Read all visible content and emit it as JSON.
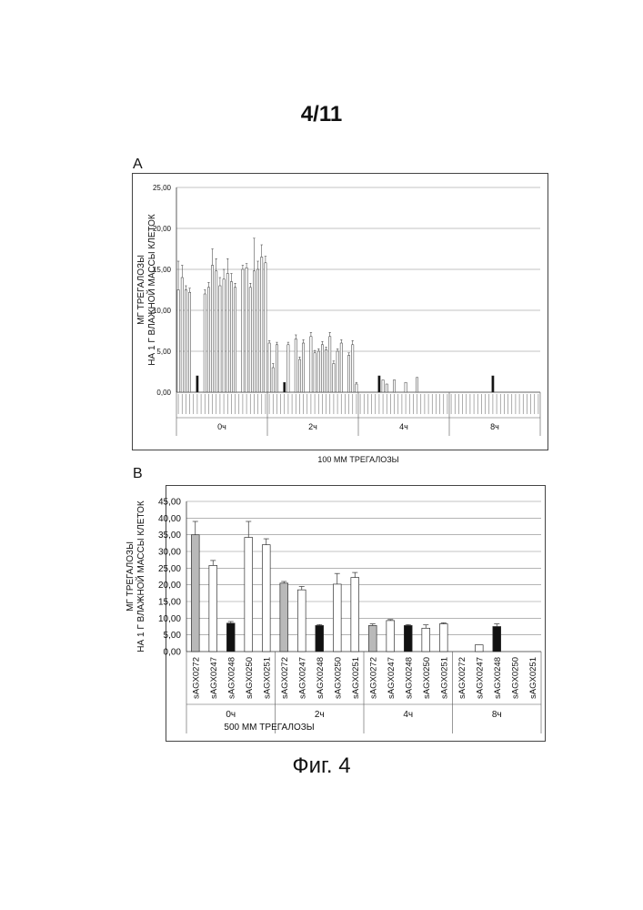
{
  "page": {
    "number": "4/11",
    "caption": "Фиг. 4"
  },
  "colors": {
    "gray": "#b9b9b9",
    "white": "#ffffff",
    "black": "#111111",
    "grid": "#888888"
  },
  "chart_data": [
    {
      "panel": "A",
      "type": "bar",
      "title": "",
      "xlabel": "100 ММ ТРЕГАЛОЗЫ",
      "ylabel_lines": [
        "МГ ТРЕГАЛОЗЫ",
        "НА 1 Г ВЛАЖНОЙ МАССЫ КЛЕТОК"
      ],
      "ylim": [
        0,
        25
      ],
      "ytick_labels": [
        "0,00",
        "5,00",
        "10,00",
        "15,00",
        "20,00",
        "25,00"
      ],
      "grid": true,
      "groups": [
        {
          "label": "0ч",
          "values": [
            12.5,
            14.0,
            12.5,
            12.2,
            0,
            2.0,
            0,
            12.0,
            12.8,
            15.5,
            14.8,
            13.0,
            13.8,
            14.5,
            13.5,
            12.8,
            0,
            15.0,
            15.2,
            12.8,
            14.8,
            15.0,
            16.5,
            15.8
          ],
          "errors": [
            3.5,
            1.5,
            0.5,
            0.5,
            0,
            0,
            0,
            0.5,
            0.6,
            2.0,
            1.5,
            1.0,
            1.2,
            1.8,
            1.0,
            0.5,
            0,
            0.5,
            0.5,
            0.5,
            4.0,
            1.0,
            1.5,
            0.8
          ],
          "styles": [
            "w",
            "w",
            "w",
            "w",
            "w",
            "b",
            "w",
            "w",
            "w",
            "w",
            "w",
            "w",
            "w",
            "w",
            "w",
            "w",
            "w",
            "w",
            "w",
            "w",
            "w",
            "w",
            "w",
            "w"
          ]
        },
        {
          "label": "2ч",
          "values": [
            6.0,
            3.0,
            5.8,
            0,
            1.2,
            5.8,
            0,
            6.5,
            4.0,
            6.0,
            0,
            6.8,
            4.8,
            5.0,
            5.8,
            5.2,
            6.8,
            3.5,
            5.0,
            6.0,
            0,
            4.5,
            5.8,
            1.0
          ],
          "errors": [
            0.3,
            0.5,
            0.3,
            0,
            0,
            0.3,
            0,
            0.5,
            0.3,
            0.4,
            0,
            0.5,
            0.3,
            0.3,
            0.4,
            0.3,
            0.5,
            0.3,
            0.3,
            0.4,
            0,
            0.3,
            0.5,
            0.2
          ],
          "styles": [
            "w",
            "w",
            "w",
            "w",
            "b",
            "w",
            "w",
            "w",
            "w",
            "w",
            "w",
            "w",
            "w",
            "w",
            "w",
            "w",
            "w",
            "w",
            "w",
            "w",
            "w",
            "w",
            "w",
            "w"
          ]
        },
        {
          "label": "4ч",
          "values": [
            0,
            0,
            0,
            0,
            0,
            2.0,
            1.5,
            1.0,
            0,
            1.5,
            0,
            0,
            1.2,
            0,
            0,
            1.8,
            0,
            0,
            0,
            0,
            0,
            0,
            0,
            0
          ],
          "errors": [
            0,
            0,
            0,
            0,
            0,
            0,
            0,
            0,
            0,
            0,
            0,
            0,
            0,
            0,
            0,
            0,
            0,
            0,
            0,
            0,
            0,
            0,
            0,
            0
          ],
          "styles": [
            "w",
            "w",
            "w",
            "w",
            "w",
            "b",
            "w",
            "w",
            "w",
            "w",
            "w",
            "w",
            "w",
            "w",
            "w",
            "w",
            "w",
            "w",
            "w",
            "w",
            "w",
            "w",
            "w",
            "w"
          ]
        },
        {
          "label": "8ч",
          "values": [
            0,
            0,
            0,
            0,
            0,
            0,
            0,
            0,
            0,
            0,
            0,
            2.0,
            0,
            0,
            0,
            0,
            0,
            0,
            0,
            0,
            0,
            0,
            0,
            0
          ],
          "errors": [
            0,
            0,
            0,
            0,
            0,
            0,
            0,
            0,
            0,
            0,
            0,
            0,
            0,
            0,
            0,
            0,
            0,
            0,
            0,
            0,
            0,
            0,
            0,
            0
          ],
          "styles": [
            "w",
            "w",
            "w",
            "w",
            "w",
            "w",
            "w",
            "w",
            "w",
            "w",
            "w",
            "b",
            "w",
            "w",
            "w",
            "w",
            "w",
            "w",
            "w",
            "w",
            "w",
            "w",
            "w",
            "w"
          ]
        }
      ]
    },
    {
      "panel": "B",
      "type": "bar",
      "title": "",
      "xlabel": "500 ММ ТРЕГАЛОЗЫ",
      "ylabel_lines": [
        "МГ ТРЕГАЛОЗЫ",
        "НА 1 Г ВЛАЖНОЙ МАССЫ КЛЕТОК"
      ],
      "ylim": [
        0,
        45
      ],
      "ytick_labels": [
        "0,00",
        "5,00",
        "10,00",
        "15,00",
        "20,00",
        "25,00",
        "30,00",
        "35,00",
        "40,00",
        "45,00"
      ],
      "grid": true,
      "categories": [
        "sAGX0272",
        "sAGX0247",
        "sAGX0248",
        "sAGX0250",
        "sAGX0251"
      ],
      "category_styles": [
        "g",
        "w",
        "b",
        "w",
        "w"
      ],
      "groups": [
        {
          "label": "0ч",
          "values": [
            35.0,
            25.8,
            8.5,
            34.2,
            32.0
          ],
          "errors": [
            4.0,
            1.5,
            0.5,
            4.8,
            1.8
          ]
        },
        {
          "label": "2ч",
          "values": [
            20.5,
            18.5,
            7.8,
            20.2,
            22.2
          ],
          "errors": [
            0.5,
            1.0,
            0.3,
            3.2,
            1.5
          ]
        },
        {
          "label": "4ч",
          "values": [
            7.8,
            9.3,
            7.8,
            7.0,
            8.3
          ],
          "errors": [
            0.5,
            0.3,
            0.3,
            1.0,
            0.3
          ]
        },
        {
          "label": "8ч",
          "values": [
            0,
            2.0,
            7.5,
            0,
            0
          ],
          "errors": [
            0,
            0,
            0.8,
            0,
            0
          ]
        }
      ]
    }
  ]
}
